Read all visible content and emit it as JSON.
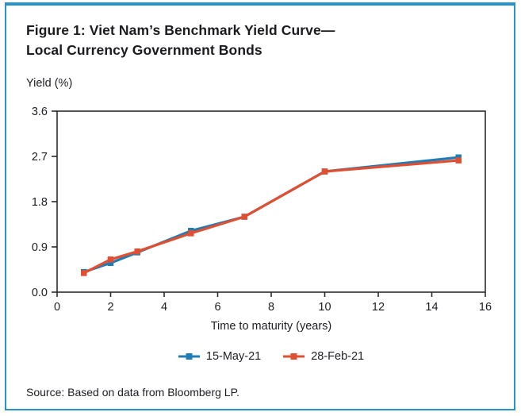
{
  "figure": {
    "title_line1": "Figure 1: Viet Nam’s Benchmark Yield Curve—",
    "title_line2": "Local Currency Government Bonds",
    "source": "Source: Based on data from Bloomberg LP."
  },
  "chart_data": {
    "type": "line",
    "title": "Figure 1: Viet Nam’s Benchmark Yield Curve—Local Currency Government Bonds",
    "ylabel": "Yield (%)",
    "xlabel": "Time to maturity (years)",
    "x": [
      1,
      2,
      3,
      5,
      7,
      10,
      15
    ],
    "series": [
      {
        "name": "15-May-21",
        "color": "#1f7cb5",
        "values": [
          0.4,
          0.58,
          0.79,
          1.22,
          1.5,
          2.4,
          2.68
        ]
      },
      {
        "name": "28-Feb-21",
        "color": "#e04f31",
        "values": [
          0.38,
          0.65,
          0.81,
          1.17,
          1.5,
          2.4,
          2.62
        ]
      }
    ],
    "xlim": [
      0,
      16
    ],
    "ylim": [
      0.0,
      3.6
    ],
    "xticks": [
      0,
      2,
      4,
      6,
      8,
      10,
      12,
      14,
      16
    ],
    "yticks": [
      0.0,
      0.9,
      1.8,
      2.7,
      3.6
    ],
    "grid": false,
    "legend_position": "bottom",
    "marker": "square",
    "axis_color": "#2b2b2b",
    "frame_color": "#2994cb"
  }
}
